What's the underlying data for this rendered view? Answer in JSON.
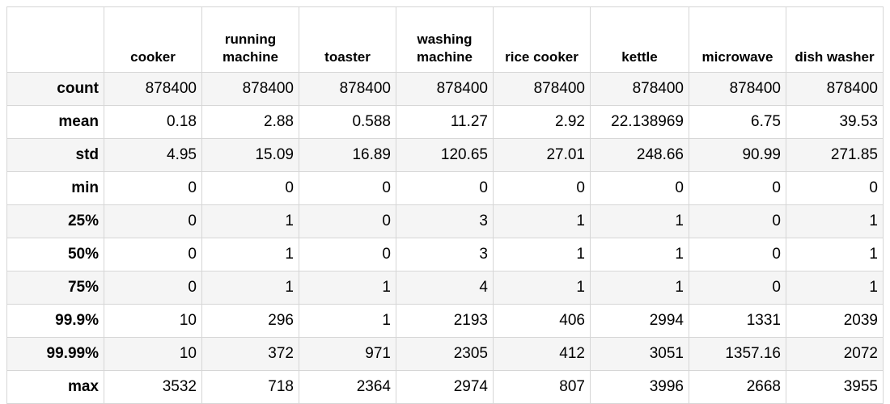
{
  "table": {
    "columns": [
      "",
      "cooker",
      "running machine",
      "toaster",
      "washing machine",
      "rice cooker",
      "kettle",
      "microwave",
      "dish washer"
    ],
    "rows": [
      {
        "label": "count",
        "values": [
          "878400",
          "878400",
          "878400",
          "878400",
          "878400",
          "878400",
          "878400",
          "878400"
        ]
      },
      {
        "label": "mean",
        "values": [
          "0.18",
          "2.88",
          "0.588",
          "11.27",
          "2.92",
          "22.138969",
          "6.75",
          "39.53"
        ]
      },
      {
        "label": "std",
        "values": [
          "4.95",
          "15.09",
          "16.89",
          "120.65",
          "27.01",
          "248.66",
          "90.99",
          "271.85"
        ]
      },
      {
        "label": "min",
        "values": [
          "0",
          "0",
          "0",
          "0",
          "0",
          "0",
          "0",
          "0"
        ]
      },
      {
        "label": "25%",
        "values": [
          "0",
          "1",
          "0",
          "3",
          "1",
          "1",
          "0",
          "1"
        ]
      },
      {
        "label": "50%",
        "values": [
          "0",
          "1",
          "0",
          "3",
          "1",
          "1",
          "0",
          "1"
        ]
      },
      {
        "label": "75%",
        "values": [
          "0",
          "1",
          "1",
          "4",
          "1",
          "1",
          "0",
          "1"
        ]
      },
      {
        "label": "99.9%",
        "values": [
          "10",
          "296",
          "1",
          "2193",
          "406",
          "2994",
          "1331",
          "2039"
        ]
      },
      {
        "label": "99.99%",
        "values": [
          "10",
          "372",
          "971",
          "2305",
          "412",
          "3051",
          "1357.16",
          "2072"
        ]
      },
      {
        "label": "max",
        "values": [
          "3532",
          "718",
          "2364",
          "2974",
          "807",
          "3996",
          "2668",
          "3955"
        ]
      }
    ]
  }
}
